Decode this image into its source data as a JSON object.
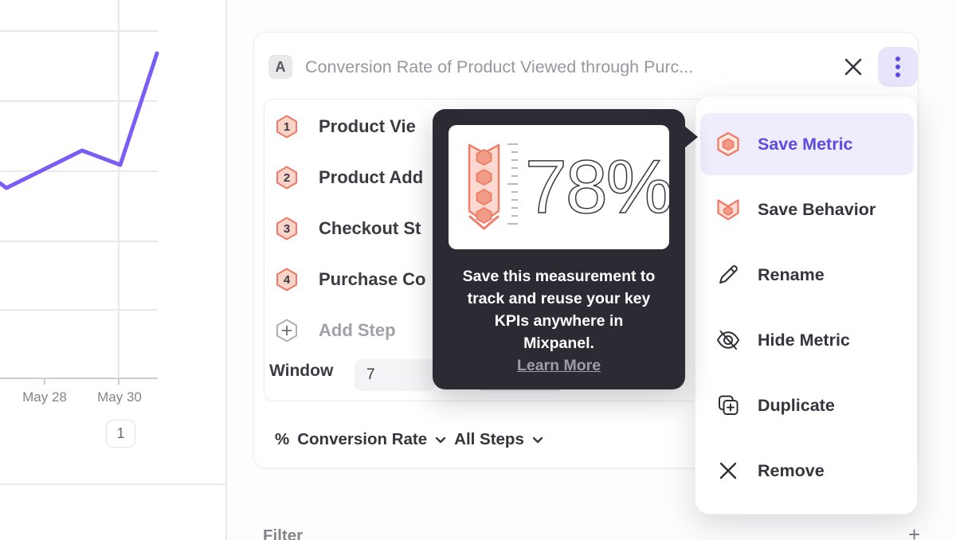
{
  "colors": {
    "accent_purple": "#5b4be0",
    "line_purple": "#7b5cf5",
    "coral": "#ee7a62",
    "coral_fill": "#fad3c9",
    "tooltip_bg": "#2b2b33",
    "highlight_bg": "#efecfc"
  },
  "chart": {
    "x_labels": [
      "May 28",
      "May 30"
    ],
    "page_badge": "1",
    "line_color": "#7b5cf5",
    "line_points": [
      [
        0,
        230
      ],
      [
        8,
        236
      ],
      [
        103,
        189
      ],
      [
        151,
        207
      ],
      [
        197,
        67
      ]
    ]
  },
  "panel": {
    "series_badge": "A",
    "title": "Conversion Rate of Product Viewed through Purc...",
    "steps": [
      {
        "num": "1",
        "label": "Product Vie"
      },
      {
        "num": "2",
        "label": "Product Add"
      },
      {
        "num": "3",
        "label": "Checkout St"
      },
      {
        "num": "4",
        "label": "Purchase Co"
      }
    ],
    "add_step_label": "Add Step",
    "window_label": "Window",
    "window_value": "7",
    "footer": {
      "percent": "%",
      "metric": "Conversion Rate",
      "scope": "All Steps"
    }
  },
  "tooltip": {
    "value": "78%",
    "message_lines": [
      "Save this measurement to",
      "track and reuse your key",
      "KPIs anywhere in",
      "Mixpanel."
    ],
    "learn_more": "Learn More"
  },
  "menu": {
    "items": [
      {
        "label": "Save Metric"
      },
      {
        "label": "Save Behavior"
      },
      {
        "label": "Rename"
      },
      {
        "label": "Hide Metric"
      },
      {
        "label": "Duplicate"
      },
      {
        "label": "Remove"
      }
    ]
  },
  "filter_section": {
    "label": "Filter",
    "add": "+"
  }
}
